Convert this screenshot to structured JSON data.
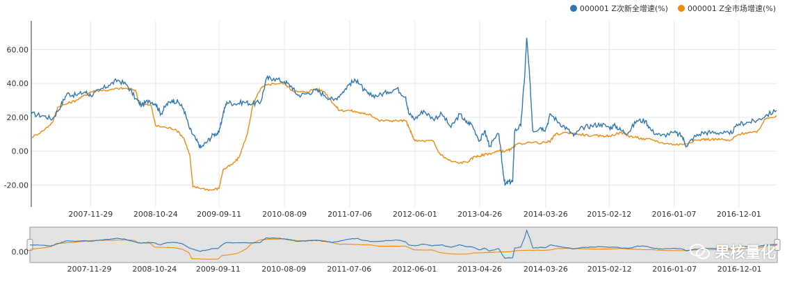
{
  "legend": {
    "series1": "000001 Z次新全增速(%)",
    "series2": "000001 Z全市场增速(%)"
  },
  "watermark": "果核量化",
  "colors": {
    "series1": "#2f77b3",
    "series2": "#ef8a10",
    "navigator_bg": "#e3e3e3",
    "grid": "#e8e8e8"
  },
  "chart_data": {
    "type": "line",
    "y_ticks": [
      -20,
      0,
      20,
      40,
      60
    ],
    "y_tick_labels": [
      "-20.00",
      "0.00",
      "20.00",
      "40.00",
      "60.00"
    ],
    "ylim": [
      -33,
      77
    ],
    "x_tick_labels": [
      "2007-11-29",
      "2008-10-24",
      "2009-09-11",
      "2010-08-09",
      "2011-07-06",
      "2012-06-01",
      "2013-04-26",
      "2014-03-26",
      "2015-02-12",
      "2016-01-07",
      "2016-12-01"
    ],
    "navigator_tick_label": "0.00",
    "x_range": [
      "2007-02-01",
      "2017-06-10"
    ],
    "series": [
      {
        "name": "000001 Z次新全增速(%)",
        "points": [
          [
            "2007-02-01",
            22
          ],
          [
            "2007-04-01",
            21
          ],
          [
            "2007-05-20",
            19
          ],
          [
            "2007-07-01",
            27
          ],
          [
            "2007-08-01",
            34
          ],
          [
            "2007-09-15",
            33
          ],
          [
            "2007-11-01",
            35
          ],
          [
            "2007-11-29",
            33
          ],
          [
            "2008-01-15",
            36
          ],
          [
            "2008-03-01",
            39
          ],
          [
            "2008-04-15",
            42
          ],
          [
            "2008-06-01",
            39
          ],
          [
            "2008-07-15",
            31
          ],
          [
            "2008-08-15",
            27
          ],
          [
            "2008-09-20",
            30
          ],
          [
            "2008-10-24",
            28
          ],
          [
            "2008-11-20",
            22
          ],
          [
            "2008-12-15",
            27
          ],
          [
            "2009-01-15",
            30
          ],
          [
            "2009-02-15",
            29
          ],
          [
            "2009-03-15",
            25
          ],
          [
            "2009-04-15",
            13
          ],
          [
            "2009-05-15",
            7
          ],
          [
            "2009-06-10",
            2
          ],
          [
            "2009-07-15",
            6
          ],
          [
            "2009-08-15",
            10
          ],
          [
            "2009-09-11",
            11
          ],
          [
            "2009-10-01",
            22
          ],
          [
            "2009-10-20",
            29
          ],
          [
            "2009-12-01",
            28
          ],
          [
            "2010-01-15",
            29
          ],
          [
            "2010-03-01",
            28
          ],
          [
            "2010-04-10",
            29
          ],
          [
            "2010-05-10",
            43
          ],
          [
            "2010-06-15",
            43
          ],
          [
            "2010-08-09",
            41
          ],
          [
            "2010-09-15",
            38
          ],
          [
            "2010-10-15",
            33
          ],
          [
            "2010-12-01",
            34
          ],
          [
            "2011-01-15",
            36
          ],
          [
            "2011-03-01",
            33
          ],
          [
            "2011-04-15",
            30
          ],
          [
            "2011-06-01",
            35
          ],
          [
            "2011-07-06",
            40
          ],
          [
            "2011-08-15",
            42
          ],
          [
            "2011-09-15",
            36
          ],
          [
            "2011-10-15",
            33
          ],
          [
            "2011-12-01",
            33
          ],
          [
            "2012-01-15",
            35
          ],
          [
            "2012-03-01",
            37
          ],
          [
            "2012-04-15",
            32
          ],
          [
            "2012-05-01",
            22
          ],
          [
            "2012-06-01",
            19
          ],
          [
            "2012-07-15",
            24
          ],
          [
            "2012-09-01",
            19
          ],
          [
            "2012-10-15",
            22
          ],
          [
            "2012-12-01",
            14
          ],
          [
            "2013-01-15",
            22
          ],
          [
            "2013-02-15",
            17
          ],
          [
            "2013-03-15",
            16
          ],
          [
            "2013-04-26",
            6
          ],
          [
            "2013-05-20",
            12
          ],
          [
            "2013-06-15",
            3
          ],
          [
            "2013-08-01",
            10
          ],
          [
            "2013-08-20",
            -10
          ],
          [
            "2013-09-01",
            -20
          ],
          [
            "2013-09-20",
            -18
          ],
          [
            "2013-10-10",
            -18
          ],
          [
            "2013-10-20",
            12
          ],
          [
            "2013-11-20",
            15
          ],
          [
            "2013-12-10",
            45
          ],
          [
            "2013-12-20",
            67
          ],
          [
            "2014-01-05",
            42
          ],
          [
            "2014-01-20",
            12
          ],
          [
            "2014-03-01",
            14
          ],
          [
            "2014-03-26",
            13
          ],
          [
            "2014-04-20",
            22
          ],
          [
            "2014-06-01",
            17
          ],
          [
            "2014-07-15",
            13
          ],
          [
            "2014-08-15",
            9
          ],
          [
            "2014-10-01",
            14
          ],
          [
            "2014-11-15",
            15
          ],
          [
            "2015-01-01",
            16
          ],
          [
            "2015-02-12",
            14
          ],
          [
            "2015-03-15",
            15
          ],
          [
            "2015-04-15",
            12
          ],
          [
            "2015-05-20",
            11
          ],
          [
            "2015-07-01",
            18
          ],
          [
            "2015-08-15",
            18
          ],
          [
            "2015-09-15",
            12
          ],
          [
            "2015-11-01",
            9
          ],
          [
            "2016-01-07",
            11
          ],
          [
            "2016-02-15",
            9
          ],
          [
            "2016-03-10",
            3
          ],
          [
            "2016-04-15",
            8
          ],
          [
            "2016-06-01",
            11
          ],
          [
            "2016-07-15",
            11
          ],
          [
            "2016-09-01",
            11
          ],
          [
            "2016-10-15",
            10
          ],
          [
            "2016-12-01",
            16
          ],
          [
            "2017-01-15",
            17
          ],
          [
            "2017-03-01",
            18
          ],
          [
            "2017-04-15",
            21
          ],
          [
            "2017-06-10",
            24
          ]
        ]
      },
      {
        "name": "000001 Z全市场增速(%)",
        "points": [
          [
            "2007-02-01",
            8
          ],
          [
            "2007-04-01",
            12
          ],
          [
            "2007-05-20",
            17
          ],
          [
            "2007-06-15",
            26
          ],
          [
            "2007-08-01",
            28
          ],
          [
            "2007-09-15",
            30
          ],
          [
            "2007-11-01",
            33
          ],
          [
            "2007-11-29",
            35
          ],
          [
            "2008-01-15",
            36
          ],
          [
            "2008-03-01",
            36
          ],
          [
            "2008-04-15",
            37
          ],
          [
            "2008-06-01",
            37
          ],
          [
            "2008-07-15",
            36
          ],
          [
            "2008-08-01",
            28
          ],
          [
            "2008-10-01",
            27
          ],
          [
            "2008-10-24",
            15
          ],
          [
            "2008-12-15",
            14
          ],
          [
            "2009-02-01",
            13
          ],
          [
            "2009-03-15",
            8
          ],
          [
            "2009-04-15",
            -2
          ],
          [
            "2009-05-01",
            -21
          ],
          [
            "2009-06-15",
            -22
          ],
          [
            "2009-08-01",
            -23
          ],
          [
            "2009-09-11",
            -22
          ],
          [
            "2009-10-01",
            -11
          ],
          [
            "2009-11-15",
            -8
          ],
          [
            "2009-12-20",
            -4
          ],
          [
            "2010-02-01",
            10
          ],
          [
            "2010-03-01",
            27
          ],
          [
            "2010-04-10",
            37
          ],
          [
            "2010-05-10",
            39
          ],
          [
            "2010-06-15",
            40
          ],
          [
            "2010-08-09",
            40
          ],
          [
            "2010-09-15",
            36
          ],
          [
            "2010-10-15",
            35
          ],
          [
            "2010-12-01",
            35
          ],
          [
            "2011-01-15",
            37
          ],
          [
            "2011-03-01",
            35
          ],
          [
            "2011-04-15",
            28
          ],
          [
            "2011-05-15",
            24
          ],
          [
            "2011-07-06",
            24
          ],
          [
            "2011-08-15",
            23
          ],
          [
            "2011-09-15",
            22
          ],
          [
            "2011-10-15",
            22
          ],
          [
            "2011-12-01",
            18
          ],
          [
            "2012-01-15",
            18
          ],
          [
            "2012-03-01",
            18
          ],
          [
            "2012-04-15",
            18
          ],
          [
            "2012-05-01",
            14
          ],
          [
            "2012-05-15",
            10
          ],
          [
            "2012-06-01",
            6
          ],
          [
            "2012-07-15",
            6
          ],
          [
            "2012-09-01",
            6
          ],
          [
            "2012-10-01",
            -1
          ],
          [
            "2012-11-01",
            -4
          ],
          [
            "2012-12-01",
            -6
          ],
          [
            "2013-01-15",
            -7
          ],
          [
            "2013-03-01",
            -6
          ],
          [
            "2013-04-01",
            -3
          ],
          [
            "2013-04-26",
            -3
          ],
          [
            "2013-05-20",
            -2
          ],
          [
            "2013-07-01",
            -1
          ],
          [
            "2013-08-01",
            0
          ],
          [
            "2013-09-01",
            0
          ],
          [
            "2013-10-01",
            1
          ],
          [
            "2013-11-01",
            4
          ],
          [
            "2013-12-20",
            5
          ],
          [
            "2014-03-26",
            5
          ],
          [
            "2014-04-20",
            6
          ],
          [
            "2014-05-15",
            10
          ],
          [
            "2014-07-15",
            11
          ],
          [
            "2014-09-15",
            10
          ],
          [
            "2014-11-15",
            9
          ],
          [
            "2015-01-01",
            9
          ],
          [
            "2015-02-12",
            9
          ],
          [
            "2015-04-15",
            11
          ],
          [
            "2015-05-20",
            9
          ],
          [
            "2015-07-01",
            8
          ],
          [
            "2015-08-15",
            7
          ],
          [
            "2015-09-15",
            7
          ],
          [
            "2015-11-01",
            5
          ],
          [
            "2016-01-07",
            4
          ],
          [
            "2016-02-15",
            4
          ],
          [
            "2016-04-15",
            6
          ],
          [
            "2016-06-01",
            7
          ],
          [
            "2016-07-15",
            7
          ],
          [
            "2016-09-01",
            7
          ],
          [
            "2016-10-15",
            6
          ],
          [
            "2016-12-01",
            10
          ],
          [
            "2017-01-15",
            11
          ],
          [
            "2017-03-01",
            11
          ],
          [
            "2017-04-15",
            19
          ],
          [
            "2017-06-10",
            21
          ]
        ]
      }
    ]
  }
}
